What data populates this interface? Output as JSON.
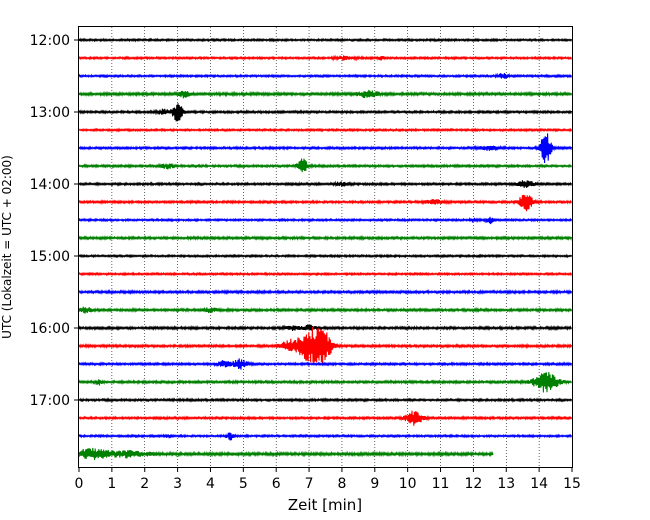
{
  "chart_data": {
    "type": "line",
    "title": "",
    "xlabel": "Zeit  [min]",
    "ylabel": "UTC (Lokalzeit = UTC + 02:00)",
    "xlim": [
      0,
      15
    ],
    "x_ticks": [
      "0",
      "1",
      "2",
      "3",
      "4",
      "5",
      "6",
      "7",
      "8",
      "9",
      "10",
      "11",
      "12",
      "13",
      "14",
      "15"
    ],
    "y_tick_labels": [
      "12:00",
      "13:00",
      "14:00",
      "15:00",
      "16:00",
      "17:00"
    ],
    "minutes_per_trace": 15,
    "grid_vertical": "dotted",
    "trace_colors": [
      "#000000",
      "#ff0000",
      "#0000ff",
      "#008000"
    ],
    "traces": [
      {
        "start": "12:00",
        "color": "#000000",
        "end_min": 15,
        "amp": 0.9,
        "events": []
      },
      {
        "start": "12:15",
        "color": "#ff0000",
        "end_min": 15,
        "amp": 0.9,
        "events": [
          {
            "t": 8.1,
            "a": 2.0,
            "w": 0.3
          },
          {
            "t": 9.2,
            "a": 2.2,
            "w": 0.1
          }
        ]
      },
      {
        "start": "12:30",
        "color": "#0000ff",
        "end_min": 15,
        "amp": 0.9,
        "events": [
          {
            "t": 12.9,
            "a": 2.5,
            "w": 0.15
          }
        ]
      },
      {
        "start": "12:45",
        "color": "#008000",
        "end_min": 15,
        "amp": 1.2,
        "events": [
          {
            "t": 3.2,
            "a": 3.5,
            "w": 0.15
          },
          {
            "t": 8.8,
            "a": 3.5,
            "w": 0.3
          }
        ]
      },
      {
        "start": "13:00",
        "color": "#000000",
        "end_min": 15,
        "amp": 1.0,
        "events": [
          {
            "t": 3.0,
            "a": 9.0,
            "w": 0.15
          },
          {
            "t": 2.6,
            "a": 2.5,
            "w": 0.2
          }
        ]
      },
      {
        "start": "13:15",
        "color": "#ff0000",
        "end_min": 15,
        "amp": 0.9,
        "events": []
      },
      {
        "start": "13:30",
        "color": "#0000ff",
        "end_min": 15,
        "amp": 1.0,
        "events": [
          {
            "t": 14.2,
            "a": 16.0,
            "w": 0.15
          },
          {
            "t": 12.5,
            "a": 2.0,
            "w": 0.3
          }
        ]
      },
      {
        "start": "13:45",
        "color": "#008000",
        "end_min": 15,
        "amp": 1.0,
        "events": [
          {
            "t": 6.8,
            "a": 7.0,
            "w": 0.15
          },
          {
            "t": 2.7,
            "a": 2.5,
            "w": 0.2
          }
        ]
      },
      {
        "start": "14:00",
        "color": "#000000",
        "end_min": 15,
        "amp": 1.0,
        "events": [
          {
            "t": 13.6,
            "a": 3.5,
            "w": 0.25
          },
          {
            "t": 8.0,
            "a": 2.0,
            "w": 0.2
          }
        ]
      },
      {
        "start": "14:15",
        "color": "#ff0000",
        "end_min": 15,
        "amp": 1.0,
        "events": [
          {
            "t": 13.6,
            "a": 9.0,
            "w": 0.2
          },
          {
            "t": 10.8,
            "a": 2.0,
            "w": 0.3
          }
        ]
      },
      {
        "start": "14:30",
        "color": "#0000ff",
        "end_min": 15,
        "amp": 0.9,
        "events": [
          {
            "t": 12.5,
            "a": 3.5,
            "w": 0.1
          },
          {
            "t": 12.0,
            "a": 2.0,
            "w": 0.1
          }
        ]
      },
      {
        "start": "14:45",
        "color": "#008000",
        "end_min": 15,
        "amp": 1.1,
        "events": []
      },
      {
        "start": "15:00",
        "color": "#000000",
        "end_min": 15,
        "amp": 0.9,
        "events": []
      },
      {
        "start": "15:15",
        "color": "#ff0000",
        "end_min": 15,
        "amp": 0.9,
        "events": []
      },
      {
        "start": "15:30",
        "color": "#0000ff",
        "end_min": 15,
        "amp": 1.1,
        "events": []
      },
      {
        "start": "15:45",
        "color": "#008000",
        "end_min": 15,
        "amp": 1.1,
        "events": [
          {
            "t": 0.2,
            "a": 2.5,
            "w": 0.2
          },
          {
            "t": 4.0,
            "a": 2.0,
            "w": 0.2
          }
        ]
      },
      {
        "start": "16:00",
        "color": "#000000",
        "end_min": 15,
        "amp": 1.1,
        "events": [
          {
            "t": 7.0,
            "a": 2.5,
            "w": 0.2
          },
          {
            "t": 6.5,
            "a": 2.0,
            "w": 0.2
          }
        ]
      },
      {
        "start": "16:15",
        "color": "#ff0000",
        "end_min": 15,
        "amp": 1.1,
        "events": [
          {
            "t": 7.1,
            "a": 18.0,
            "w": 0.4
          },
          {
            "t": 6.4,
            "a": 5.0,
            "w": 0.3
          },
          {
            "t": 7.5,
            "a": 8.0,
            "w": 0.2
          }
        ]
      },
      {
        "start": "16:30",
        "color": "#0000ff",
        "end_min": 15,
        "amp": 1.0,
        "events": [
          {
            "t": 4.9,
            "a": 5.0,
            "w": 0.2
          },
          {
            "t": 4.4,
            "a": 3.0,
            "w": 0.2
          }
        ]
      },
      {
        "start": "16:45",
        "color": "#008000",
        "end_min": 15,
        "amp": 1.1,
        "events": [
          {
            "t": 14.2,
            "a": 10.0,
            "w": 0.35
          },
          {
            "t": 0.6,
            "a": 2.5,
            "w": 0.1
          }
        ]
      },
      {
        "start": "17:00",
        "color": "#000000",
        "end_min": 15,
        "amp": 1.0,
        "events": []
      },
      {
        "start": "17:15",
        "color": "#ff0000",
        "end_min": 15,
        "amp": 1.0,
        "events": [
          {
            "t": 10.2,
            "a": 7.0,
            "w": 0.25
          }
        ]
      },
      {
        "start": "17:30",
        "color": "#0000ff",
        "end_min": 15,
        "amp": 0.9,
        "events": [
          {
            "t": 4.6,
            "a": 4.0,
            "w": 0.1
          },
          {
            "t": 2.7,
            "a": 2.0,
            "w": 0.1
          }
        ]
      },
      {
        "start": "17:45",
        "color": "#008000",
        "end_min": 12.6,
        "amp": 1.3,
        "events": [
          {
            "t": 0.4,
            "a": 5.0,
            "w": 0.5
          },
          {
            "t": 1.5,
            "a": 3.0,
            "w": 0.6
          }
        ]
      }
    ]
  }
}
